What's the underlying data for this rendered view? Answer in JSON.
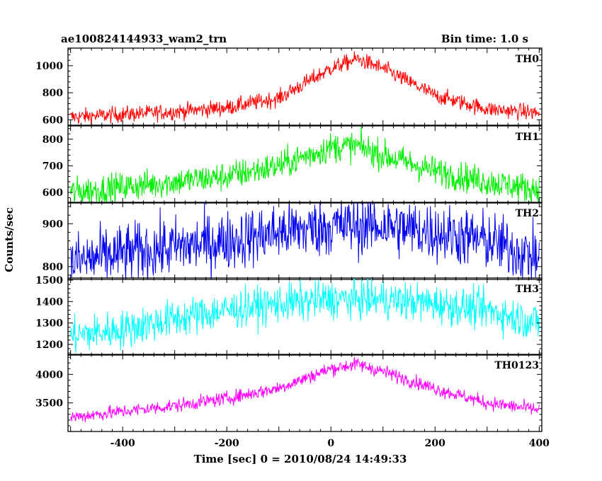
{
  "header": {
    "left": "ae100824144933_wam2_trn",
    "right": "Bin time: 1.0 s"
  },
  "chart_data": {
    "type": "line",
    "title": "ae100824144933_wam2_trn",
    "bin_time_label": "Bin time: 1.0 s",
    "xlabel": "Time [sec] 0 = 2010/08/24 14:49:33",
    "ylabel": "Counts/sec",
    "xlim": [
      -505,
      405
    ],
    "xticks": [
      -400,
      -200,
      0,
      200,
      400
    ],
    "panels": [
      {
        "name": "TH0",
        "color": "#ff0000",
        "ylim": [
          560,
          1130
        ],
        "yticks": [
          600,
          800,
          1000
        ],
        "noise": 30,
        "baseline": [
          [
            -500,
            620
          ],
          [
            -400,
            640
          ],
          [
            -300,
            660
          ],
          [
            -200,
            690
          ],
          [
            -100,
            760
          ],
          [
            0,
            980
          ],
          [
            50,
            1050
          ],
          [
            100,
            980
          ],
          [
            200,
            780
          ],
          [
            300,
            680
          ],
          [
            400,
            650
          ]
        ]
      },
      {
        "name": "TH1",
        "color": "#00ee00",
        "ylim": [
          560,
          850
        ],
        "yticks": [
          600,
          700,
          800
        ],
        "noise": 28,
        "baseline": [
          [
            -500,
            600
          ],
          [
            -400,
            620
          ],
          [
            -300,
            640
          ],
          [
            -200,
            660
          ],
          [
            -100,
            700
          ],
          [
            0,
            770
          ],
          [
            50,
            775
          ],
          [
            100,
            740
          ],
          [
            200,
            680
          ],
          [
            300,
            640
          ],
          [
            400,
            610
          ]
        ]
      },
      {
        "name": "TH2",
        "color": "#0000ee",
        "ylim": [
          770,
          950
        ],
        "yticks": [
          800,
          900
        ],
        "noise": 35,
        "baseline": [
          [
            -500,
            810
          ],
          [
            -400,
            830
          ],
          [
            -300,
            845
          ],
          [
            -200,
            860
          ],
          [
            -100,
            880
          ],
          [
            0,
            895
          ],
          [
            100,
            895
          ],
          [
            200,
            880
          ],
          [
            300,
            860
          ],
          [
            400,
            820
          ]
        ]
      },
      {
        "name": "TH3",
        "color": "#00ffff",
        "ylim": [
          1150,
          1510
        ],
        "yticks": [
          1200,
          1300,
          1400,
          1500
        ],
        "noise": 45,
        "baseline": [
          [
            -500,
            1240
          ],
          [
            -400,
            1270
          ],
          [
            -300,
            1320
          ],
          [
            -200,
            1360
          ],
          [
            -100,
            1390
          ],
          [
            0,
            1410
          ],
          [
            100,
            1410
          ],
          [
            200,
            1390
          ],
          [
            300,
            1360
          ],
          [
            400,
            1300
          ]
        ]
      },
      {
        "name": "TH0123",
        "color": "#ff00ff",
        "ylim": [
          3000,
          4350
        ],
        "yticks": [
          3500,
          4000
        ],
        "noise": 60,
        "baseline": [
          [
            -500,
            3250
          ],
          [
            -400,
            3350
          ],
          [
            -300,
            3450
          ],
          [
            -200,
            3580
          ],
          [
            -100,
            3760
          ],
          [
            0,
            4100
          ],
          [
            50,
            4180
          ],
          [
            100,
            4050
          ],
          [
            200,
            3750
          ],
          [
            300,
            3500
          ],
          [
            400,
            3380
          ]
        ]
      }
    ],
    "grid": false,
    "legend": "none"
  }
}
